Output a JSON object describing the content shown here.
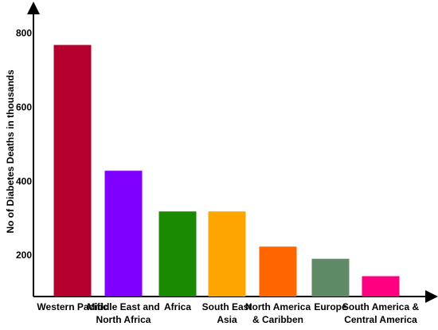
{
  "chart_data": {
    "type": "bar",
    "y_label": "No of Diabetes Deaths in thousands",
    "categories": [
      "Western Pacific",
      "Middle East and\nNorth Africa",
      "Africa",
      "South East\nAsia",
      "North America\n& Caribben",
      "Europe",
      "South America &\nCentral America"
    ],
    "values": [
      770,
      430,
      320,
      320,
      225,
      192,
      145
    ],
    "colors": [
      "#b5002f",
      "#8000ff",
      "#1a8a00",
      "#ffa500",
      "#ff6600",
      "#5f8a66",
      "#ff0080"
    ],
    "ylim": [
      90,
      870
    ],
    "yticks": [
      200,
      400,
      600,
      800
    ]
  }
}
